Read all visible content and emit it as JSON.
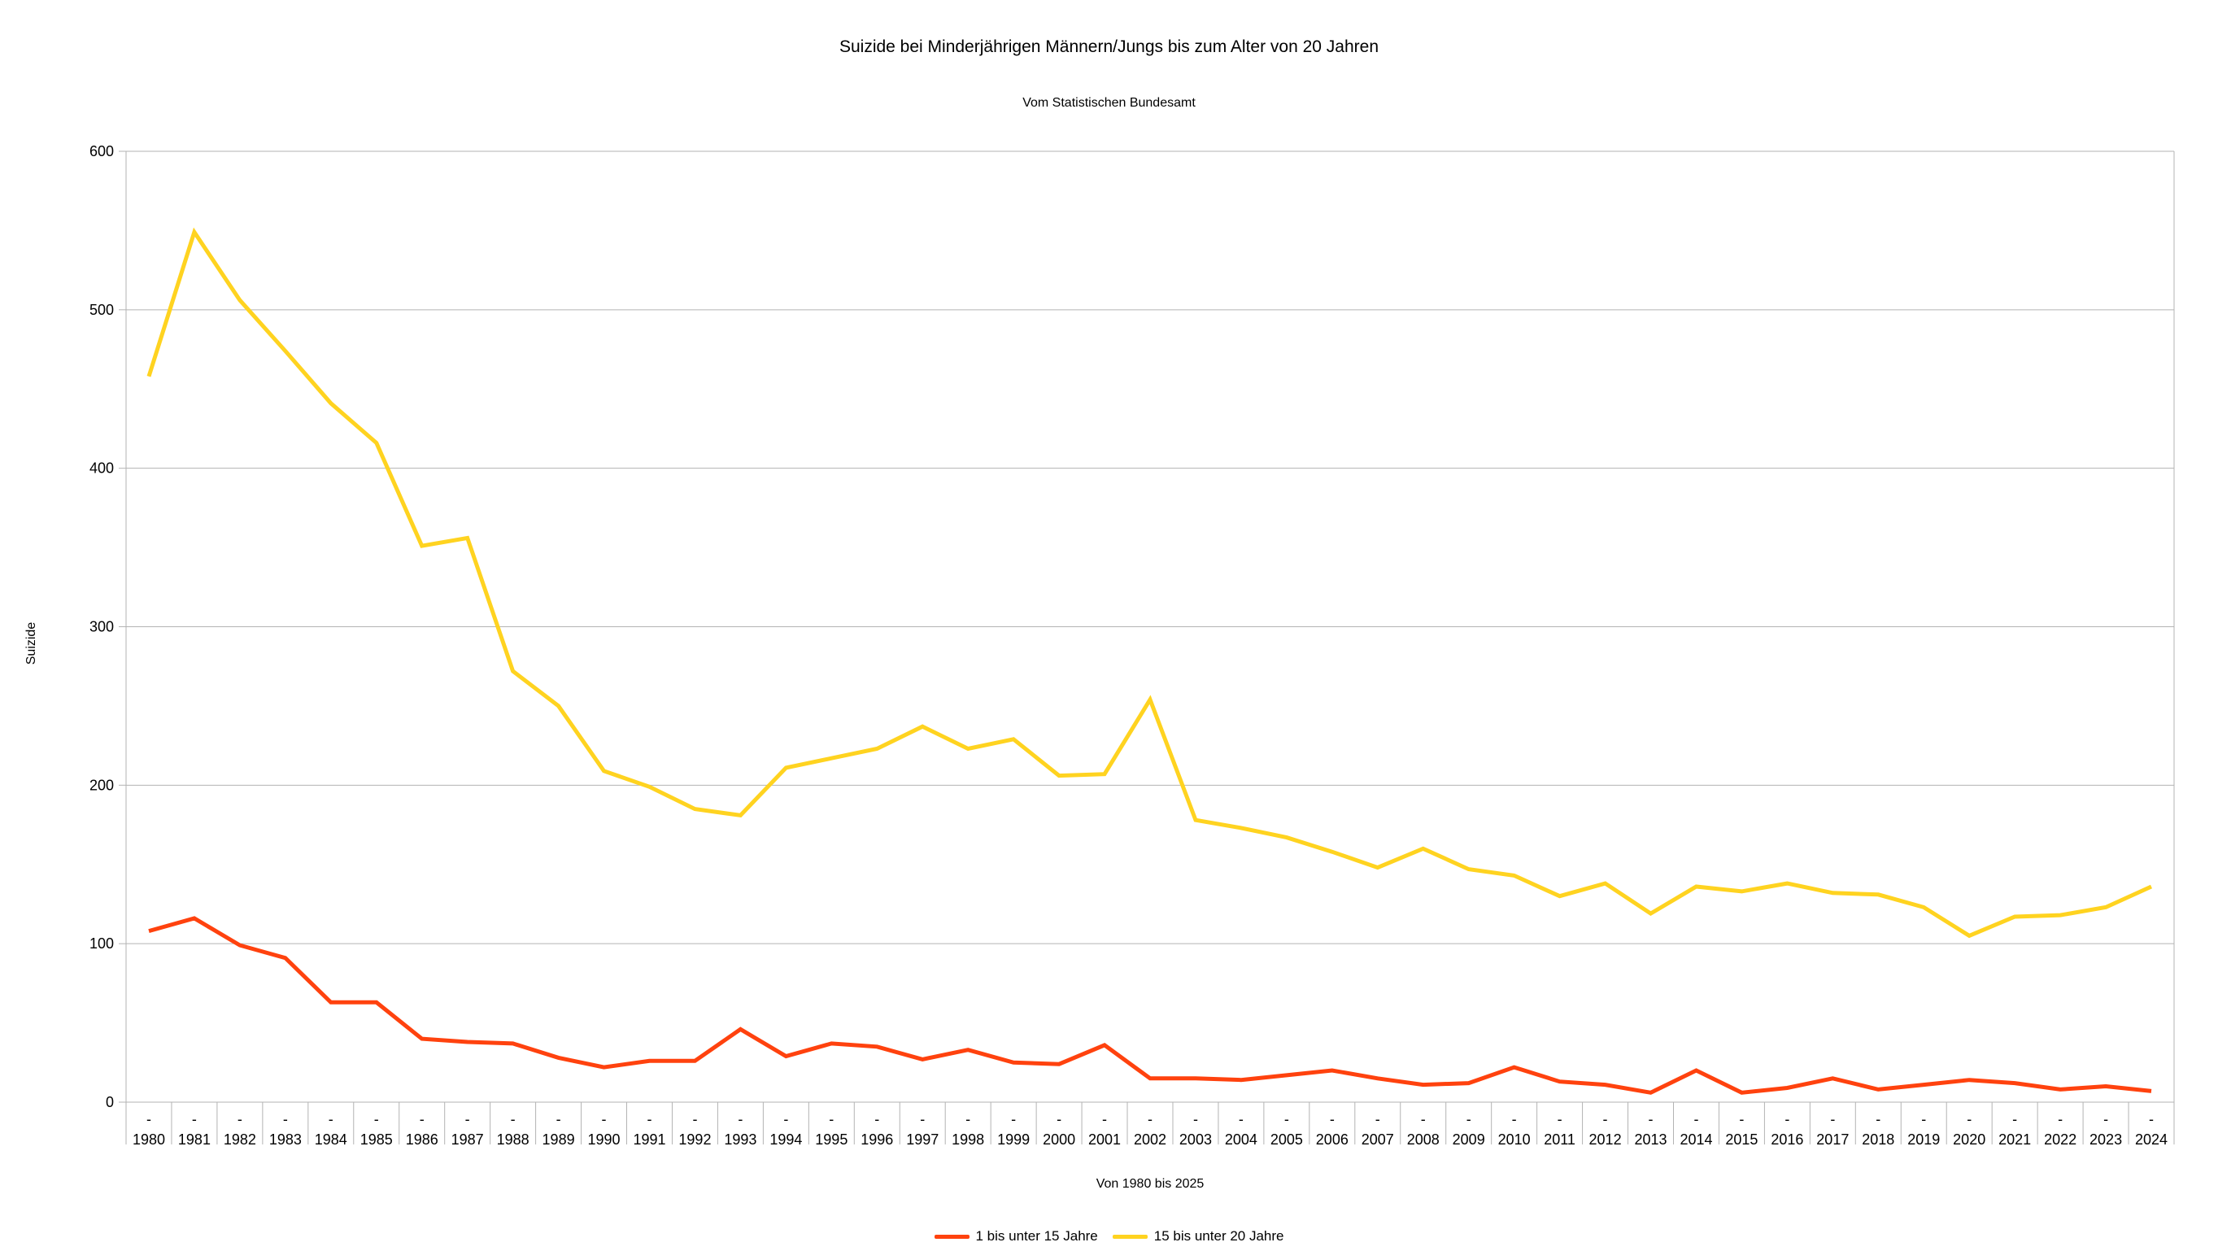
{
  "title": "Suizide bei Minderjährigen Männern/Jungs bis zum Alter von 20 Jahren",
  "subtitle": "Vom Statistischen Bundesamt",
  "chart_data": {
    "type": "line",
    "title": "Suizide bei Minderjährigen Männern/Jungs bis zum Alter von 20 Jahren",
    "subtitle": "Vom Statistischen Bundesamt",
    "xlabel": "Von 1980 bis 2025",
    "ylabel": "Suizide",
    "ylim": [
      0,
      600
    ],
    "ytick_step": 100,
    "grid": true,
    "legend_position": "bottom",
    "category_tick_dash": "-",
    "categories": [
      1980,
      1981,
      1982,
      1983,
      1984,
      1985,
      1986,
      1987,
      1988,
      1989,
      1990,
      1991,
      1992,
      1993,
      1994,
      1995,
      1996,
      1997,
      1998,
      1999,
      2000,
      2001,
      2002,
      2003,
      2004,
      2005,
      2006,
      2007,
      2008,
      2009,
      2010,
      2011,
      2012,
      2013,
      2014,
      2015,
      2016,
      2017,
      2018,
      2019,
      2020,
      2021,
      2022,
      2023,
      2024
    ],
    "series": [
      {
        "name": "1 bis unter 15 Jahre",
        "color": "#ff420e",
        "values": [
          108,
          116,
          99,
          91,
          63,
          63,
          40,
          38,
          37,
          28,
          22,
          26,
          26,
          46,
          29,
          37,
          35,
          27,
          33,
          25,
          24,
          36,
          15,
          15,
          14,
          17,
          20,
          15,
          11,
          12,
          22,
          13,
          11,
          6,
          20,
          6,
          9,
          15,
          8,
          11,
          14,
          12,
          8,
          10,
          7
        ]
      },
      {
        "name": "15 bis unter 20 Jahre",
        "color": "#ffd320",
        "values": [
          458,
          549,
          506,
          474,
          441,
          416,
          351,
          356,
          272,
          250,
          209,
          199,
          185,
          181,
          211,
          217,
          223,
          237,
          223,
          229,
          206,
          207,
          254,
          178,
          173,
          167,
          158,
          148,
          160,
          147,
          143,
          130,
          138,
          119,
          136,
          133,
          138,
          132,
          131,
          123,
          105,
          117,
          118,
          123,
          136
        ]
      }
    ],
    "axis_color": "#b3b3b3",
    "text_color": "#000000"
  }
}
